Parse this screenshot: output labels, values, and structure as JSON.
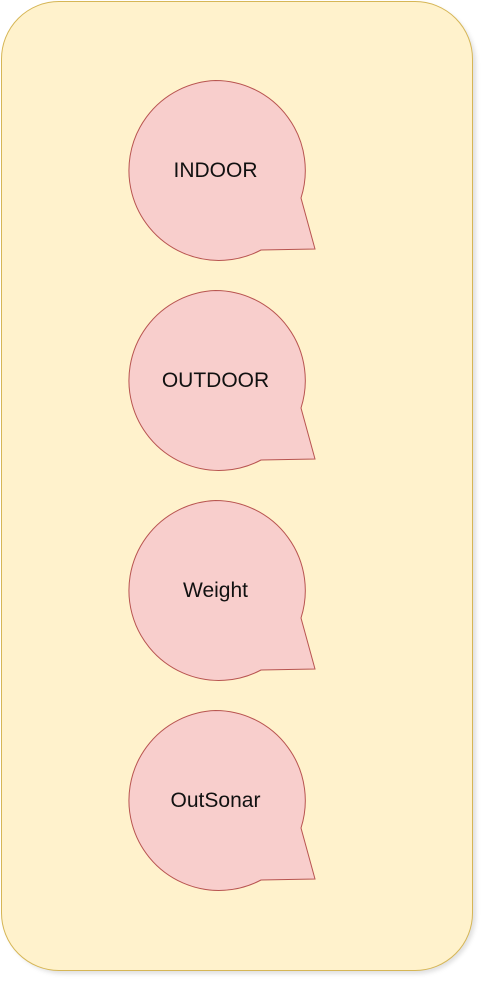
{
  "diagram": {
    "colors": {
      "panel_fill": "#fff2cc",
      "panel_stroke": "#d6b656",
      "node_fill": "#f8cecc",
      "node_stroke": "#b85450"
    },
    "nodes": [
      {
        "label": "INDOOR",
        "shape": "callout-circle-icon"
      },
      {
        "label": "OUTDOOR",
        "shape": "callout-circle-icon"
      },
      {
        "label": "Weight",
        "shape": "callout-circle-icon"
      },
      {
        "label": "OutSonar",
        "shape": "callout-circle-icon"
      }
    ]
  }
}
